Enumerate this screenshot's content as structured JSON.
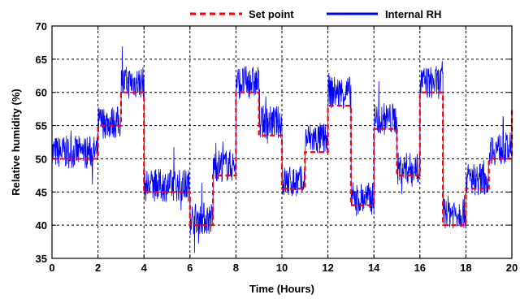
{
  "chart_data": {
    "type": "line",
    "xlabel": "Time (Hours)",
    "ylabel": "Relative humidity (%)",
    "xlim": [
      0,
      20
    ],
    "ylim": [
      35,
      70
    ],
    "xticks": [
      0,
      2,
      4,
      6,
      8,
      10,
      12,
      14,
      16,
      18,
      20
    ],
    "yticks": [
      35,
      40,
      45,
      50,
      55,
      60,
      65,
      70
    ],
    "grid": true,
    "legend_position": "top",
    "series": [
      {
        "name": "Set point",
        "style": "dashed",
        "color": "#ff0000",
        "x": [
          0,
          2,
          2,
          3,
          3,
          4,
          4,
          6,
          6,
          7,
          7,
          8,
          8,
          9,
          9,
          10,
          10,
          11,
          11,
          12,
          12,
          13,
          13,
          14,
          14,
          15,
          15,
          16,
          16,
          17,
          17,
          18,
          18,
          19,
          19,
          20,
          20
        ],
        "y": [
          50,
          50,
          55,
          55,
          60,
          60,
          45,
          45,
          40,
          40,
          47.5,
          47.5,
          60,
          60,
          53.5,
          53.5,
          45.5,
          45.5,
          51,
          51,
          58,
          58,
          43,
          43,
          54.5,
          54.5,
          47.5,
          47.5,
          60,
          60,
          40,
          40,
          45.5,
          45.5,
          50,
          50,
          57.5
        ]
      },
      {
        "name": "Internal RH",
        "style": "solid",
        "color": "#0000ff",
        "noise_amplitude": 2.5,
        "x": [
          0,
          2,
          2,
          3,
          3,
          4,
          4,
          6,
          6,
          7,
          7,
          8,
          8,
          9,
          9,
          10,
          10,
          11,
          11,
          12,
          12,
          13,
          13,
          14,
          14,
          15,
          15,
          16,
          16,
          17,
          17,
          18,
          18,
          19,
          19,
          20
        ],
        "y": [
          51,
          51,
          55.5,
          55.5,
          61.5,
          61.5,
          46,
          46,
          41,
          41,
          49,
          49,
          61.5,
          61.5,
          55.5,
          55.5,
          46.5,
          46.5,
          53,
          53,
          60,
          60,
          44,
          44,
          56,
          56,
          48.5,
          48.5,
          61.5,
          61.5,
          42,
          42,
          47,
          47,
          51.5,
          51.5
        ]
      }
    ]
  }
}
